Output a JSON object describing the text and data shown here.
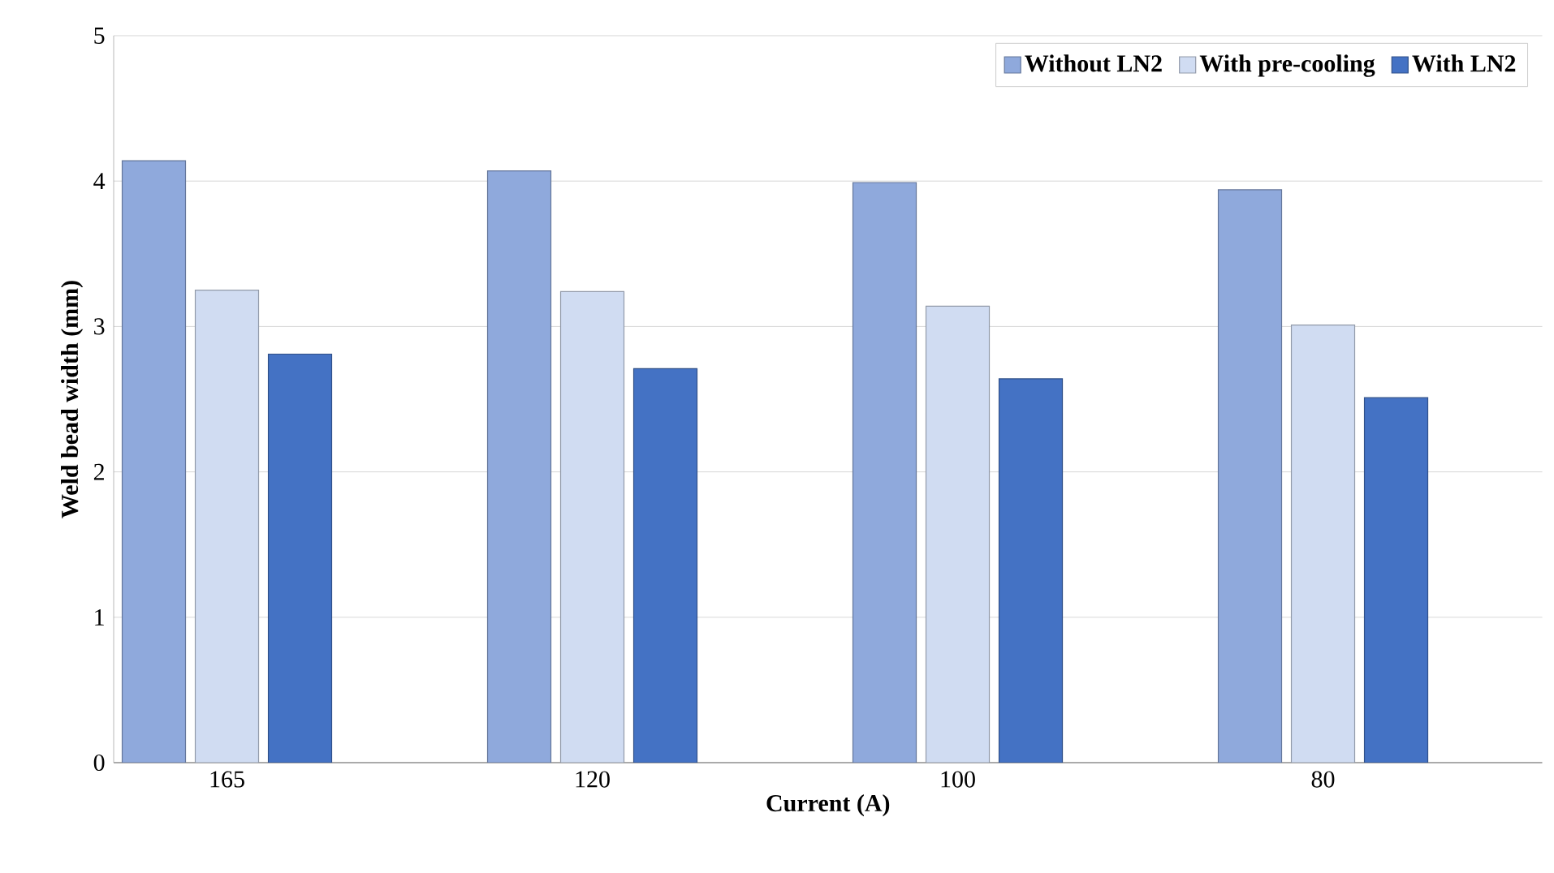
{
  "chart_data": {
    "type": "bar",
    "xlabel": "Current (A)",
    "ylabel": "Weld bead width (mm)",
    "categories": [
      "165",
      "120",
      "100",
      "80"
    ],
    "series": [
      {
        "name": "Without LN2",
        "color": "#8fa9dc",
        "values": [
          4.14,
          4.07,
          3.99,
          3.94
        ]
      },
      {
        "name": "With pre-cooling",
        "color": "#d0dcf2",
        "values": [
          3.25,
          3.24,
          3.14,
          3.01
        ]
      },
      {
        "name": "With LN2",
        "color": "#4472c4",
        "values": [
          2.81,
          2.71,
          2.64,
          2.51
        ]
      }
    ],
    "ylim": [
      0,
      5
    ],
    "yticks": [
      0,
      1,
      2,
      3,
      4,
      5
    ],
    "grid": "y",
    "legend": "top right"
  }
}
